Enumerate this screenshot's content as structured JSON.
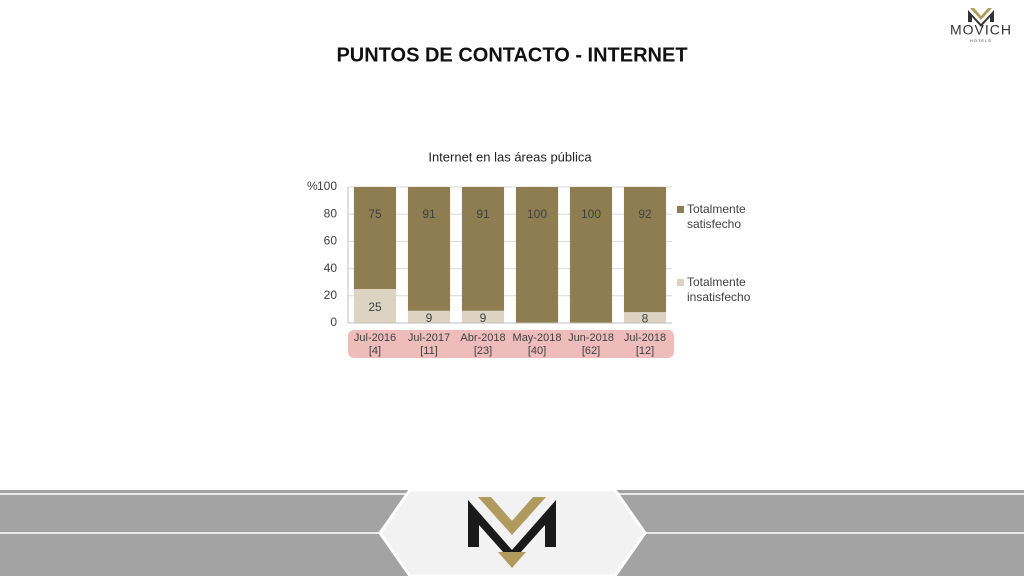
{
  "brand": "MOVICH",
  "brand_sub": "HOTELS",
  "page_title": "PUNTOS DE CONTACTO - INTERNET",
  "chart_data": {
    "type": "stacked_bar",
    "title": "Internet en las áreas pública",
    "y_label": "%",
    "categories": [
      "Jul-2016",
      "Jul-2017",
      "Abr-2018",
      "May-2018",
      "Jun-2018",
      "Jul-2018"
    ],
    "category_counts": [
      "[4]",
      "[11]",
      "[23]",
      "[40]",
      "[62]",
      "[12]"
    ],
    "series": [
      {
        "name": "Totalmente insatisfecho",
        "color": "#ddd3c2",
        "values": [
          25,
          9,
          9,
          0,
          0,
          8
        ]
      },
      {
        "name": "Totalmente satisfecho",
        "color": "#8f7d52",
        "values": [
          75,
          91,
          91,
          100,
          100,
          92
        ]
      }
    ],
    "ylim": [
      0,
      100
    ],
    "yticks": [
      0,
      20,
      40,
      60,
      80,
      100
    ],
    "grid": true,
    "legend": "right"
  }
}
